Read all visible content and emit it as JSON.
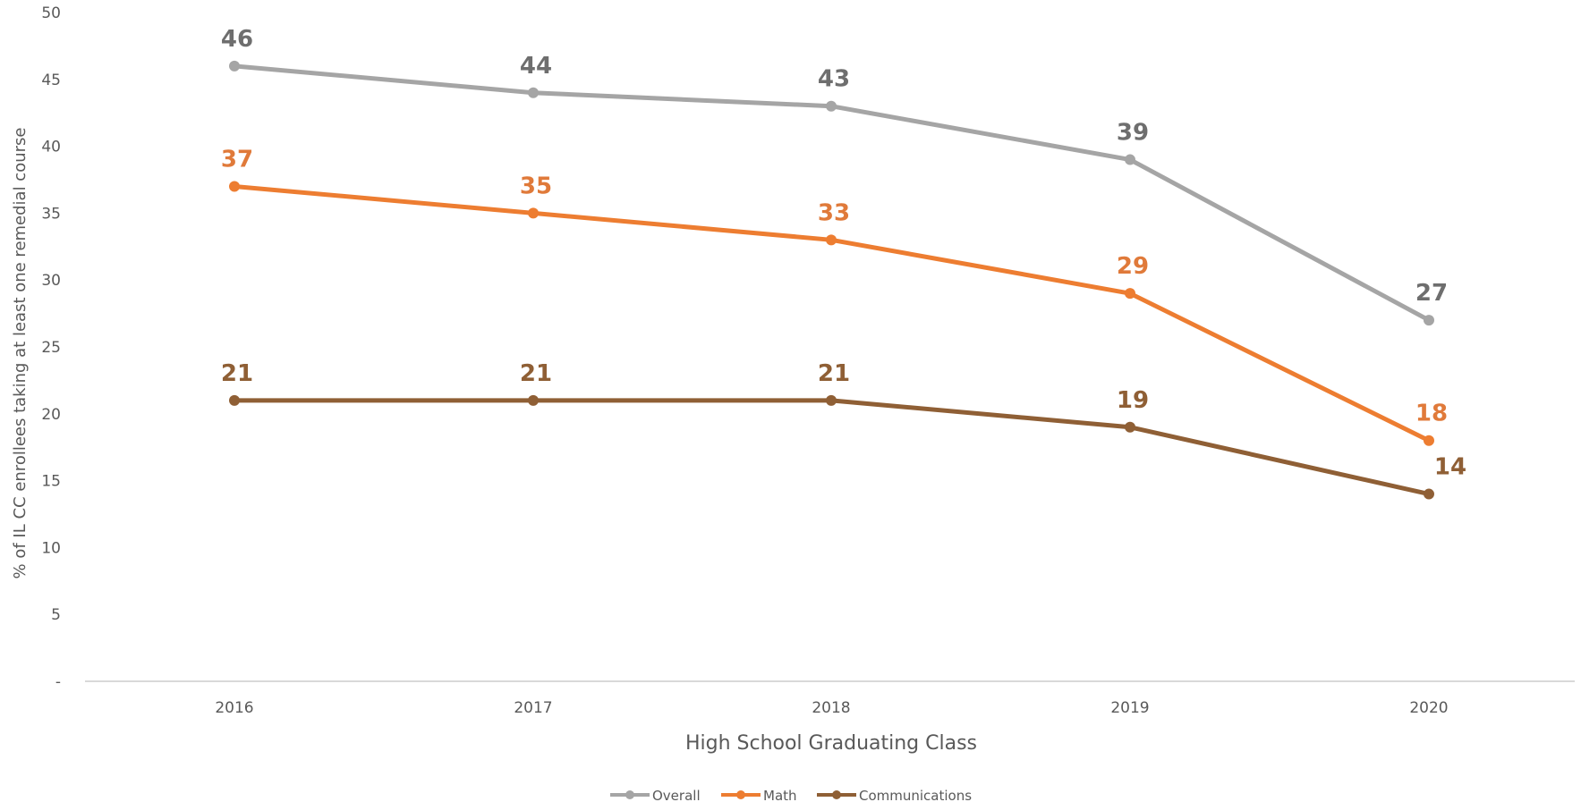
{
  "chart_data": {
    "type": "line",
    "xlabel": "High School Graduating Class",
    "ylabel": "% of IL CC enrollees taking at least one remedial course",
    "x": [
      "2016",
      "2017",
      "2018",
      "2019",
      "2020"
    ],
    "ylim": [
      0,
      50
    ],
    "yticks": [
      "-",
      "5",
      "10",
      "15",
      "20",
      "25",
      "30",
      "35",
      "40",
      "45",
      "50"
    ],
    "grid": false,
    "legend_position": "bottom",
    "series": [
      {
        "name": "Overall",
        "values": [
          46,
          44,
          43,
          39,
          27
        ],
        "color": "#a5a5a5",
        "label_color": "#6e6e6e"
      },
      {
        "name": "Math",
        "values": [
          37,
          35,
          33,
          29,
          18
        ],
        "color": "#ed7d31",
        "label_color": "#e07a3a"
      },
      {
        "name": "Communications",
        "values": [
          21,
          21,
          21,
          19,
          14
        ],
        "color": "#8f5f35",
        "label_color": "#8f5f35"
      }
    ]
  }
}
